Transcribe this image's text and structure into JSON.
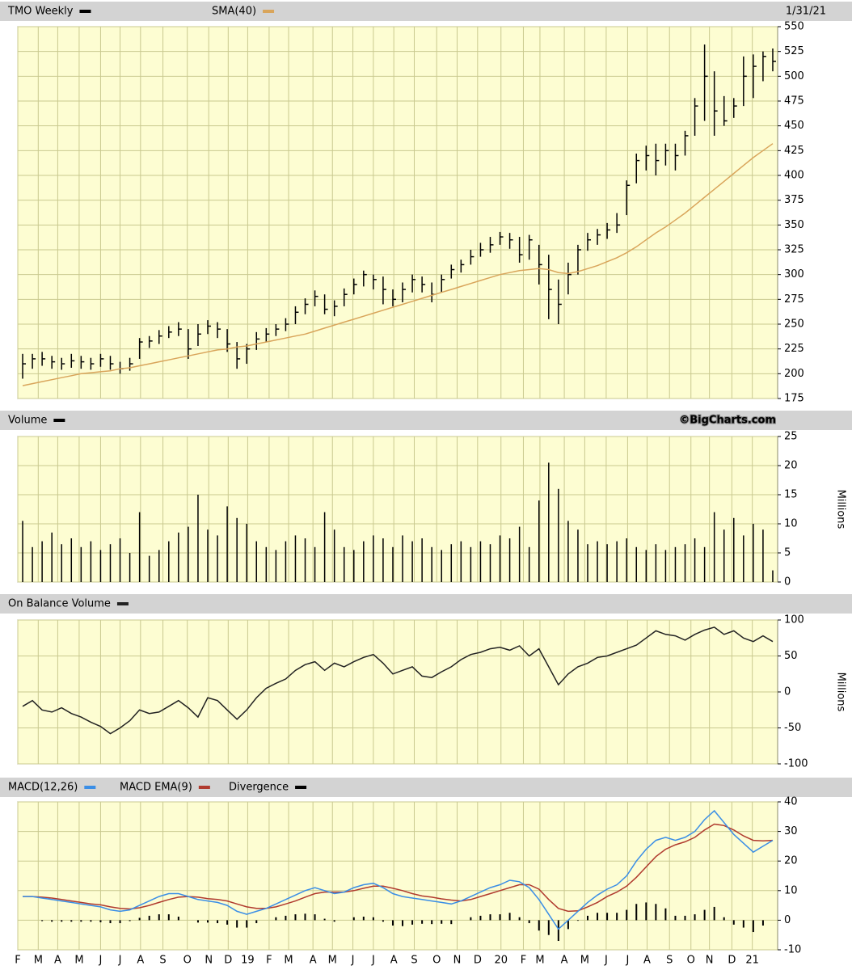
{
  "chart_data": [
    {
      "type": "ohlc",
      "date": "1/31/21",
      "ylim": [
        175,
        550
      ],
      "yticks": [
        175,
        200,
        225,
        250,
        275,
        300,
        325,
        350,
        375,
        400,
        425,
        450,
        475,
        500,
        525,
        550
      ],
      "grid": true,
      "series": [
        {
          "name": "TMO Weekly",
          "color": "#000000",
          "high": [
            220,
            220,
            222,
            218,
            216,
            220,
            218,
            216,
            220,
            218,
            212,
            216,
            236,
            238,
            244,
            248,
            252,
            245,
            250,
            254,
            252,
            245,
            232,
            230,
            242,
            246,
            250,
            256,
            268,
            276,
            284,
            280,
            274,
            286,
            296,
            304,
            300,
            298,
            285,
            292,
            300,
            298,
            292,
            300,
            310,
            315,
            325,
            332,
            338,
            343,
            342,
            338,
            340,
            330,
            320,
            295,
            312,
            330,
            342,
            346,
            352,
            362,
            395,
            422,
            430,
            432,
            432,
            432,
            445,
            478,
            532,
            505,
            480,
            478,
            520,
            522,
            525,
            528
          ],
          "low": [
            195,
            205,
            208,
            205,
            204,
            206,
            205,
            204,
            207,
            204,
            200,
            203,
            215,
            226,
            230,
            236,
            238,
            215,
            228,
            240,
            236,
            222,
            205,
            210,
            224,
            232,
            238,
            243,
            250,
            260,
            268,
            260,
            258,
            268,
            280,
            288,
            285,
            270,
            268,
            272,
            282,
            282,
            272,
            282,
            296,
            302,
            310,
            318,
            322,
            330,
            326,
            312,
            315,
            290,
            255,
            250,
            280,
            300,
            324,
            330,
            336,
            342,
            360,
            392,
            405,
            400,
            410,
            405,
            420,
            440,
            455,
            440,
            450,
            458,
            470,
            478,
            495,
            505
          ],
          "close": [
            210,
            215,
            215,
            212,
            210,
            213,
            212,
            210,
            215,
            210,
            205,
            210,
            232,
            233,
            238,
            242,
            245,
            225,
            240,
            248,
            245,
            230,
            215,
            225,
            235,
            240,
            245,
            250,
            262,
            270,
            278,
            265,
            268,
            280,
            290,
            300,
            295,
            285,
            275,
            285,
            295,
            290,
            280,
            295,
            305,
            310,
            318,
            325,
            330,
            338,
            335,
            320,
            335,
            310,
            285,
            270,
            300,
            325,
            335,
            340,
            345,
            350,
            390,
            415,
            420,
            415,
            425,
            420,
            440,
            470,
            500,
            465,
            455,
            470,
            500,
            510,
            520,
            515
          ]
        },
        {
          "name": "SMA(40)",
          "color": "#d9a55b",
          "values": [
            188,
            190,
            192,
            194,
            196,
            198,
            200,
            201,
            202,
            203,
            205,
            206,
            208,
            210,
            212,
            214,
            216,
            218,
            220,
            222,
            224,
            225,
            227,
            228,
            230,
            232,
            234,
            236,
            238,
            240,
            243,
            246,
            249,
            252,
            255,
            258,
            261,
            264,
            267,
            270,
            273,
            276,
            279,
            282,
            285,
            288,
            291,
            294,
            297,
            300,
            302,
            304,
            305,
            306,
            305,
            302,
            301,
            303,
            306,
            309,
            313,
            317,
            322,
            328,
            335,
            342,
            348,
            355,
            362,
            370,
            378,
            386,
            394,
            402,
            410,
            418,
            425,
            432
          ]
        }
      ]
    },
    {
      "type": "bar",
      "source": "©BigCharts.com",
      "ylabel": "Millions",
      "ylim": [
        0,
        25
      ],
      "yticks": [
        0,
        5,
        10,
        15,
        20,
        25
      ],
      "grid": true,
      "series": [
        {
          "name": "Volume",
          "color": "#000000",
          "values": [
            10.5,
            6,
            7,
            8.5,
            6.5,
            7.5,
            6,
            7,
            5.5,
            6.5,
            7.5,
            5,
            12,
            4.5,
            5.5,
            7,
            8.5,
            9.5,
            15,
            9,
            8,
            13,
            11,
            10,
            7,
            6,
            5.5,
            7,
            8,
            7.5,
            6,
            12,
            9,
            6,
            5.5,
            7,
            8,
            7.5,
            6,
            8,
            7,
            7.5,
            6,
            5.5,
            6.5,
            7,
            6,
            7,
            6.5,
            8,
            7.5,
            9.5,
            6,
            14,
            20.5,
            16,
            10.5,
            9,
            6.5,
            7,
            6.5,
            7,
            7.5,
            6,
            5.5,
            6.5,
            5.5,
            6,
            6.5,
            7.5,
            6,
            12,
            9,
            11,
            8,
            10,
            9,
            2
          ]
        }
      ]
    },
    {
      "type": "line",
      "ylabel": "Millions",
      "ylim": [
        -100,
        100
      ],
      "yticks": [
        -100,
        -50,
        0,
        50,
        100
      ],
      "grid": true,
      "series": [
        {
          "name": "On Balance Volume",
          "color": "#222222",
          "values": [
            -20,
            -12,
            -25,
            -28,
            -22,
            -30,
            -35,
            -42,
            -48,
            -58,
            -50,
            -40,
            -25,
            -30,
            -28,
            -20,
            -12,
            -22,
            -35,
            -8,
            -12,
            -25,
            -38,
            -25,
            -8,
            5,
            12,
            18,
            30,
            38,
            42,
            30,
            40,
            35,
            42,
            48,
            52,
            40,
            25,
            30,
            35,
            22,
            20,
            28,
            35,
            45,
            52,
            55,
            60,
            62,
            58,
            64,
            50,
            60,
            35,
            10,
            25,
            35,
            40,
            48,
            50,
            55,
            60,
            65,
            75,
            85,
            80,
            78,
            72,
            80,
            86,
            90,
            80,
            85,
            75,
            70,
            78,
            70
          ]
        }
      ]
    },
    {
      "type": "macd",
      "ylim": [
        -10,
        40
      ],
      "yticks": [
        -10,
        0,
        10,
        20,
        30,
        40
      ],
      "grid": true,
      "xlim": [
        0,
        78
      ],
      "xticks": [
        {
          "value": 0,
          "label": "F"
        },
        {
          "value": 2.1,
          "label": "M"
        },
        {
          "value": 4.1,
          "label": "A"
        },
        {
          "value": 6.3,
          "label": "M"
        },
        {
          "value": 8.5,
          "label": "J"
        },
        {
          "value": 10.5,
          "label": "J"
        },
        {
          "value": 12.6,
          "label": "A"
        },
        {
          "value": 14.9,
          "label": "S"
        },
        {
          "value": 17.4,
          "label": "O"
        },
        {
          "value": 19.6,
          "label": "N"
        },
        {
          "value": 21.6,
          "label": "D"
        },
        {
          "value": 23.6,
          "label": "19"
        },
        {
          "value": 25.8,
          "label": "F"
        },
        {
          "value": 27.8,
          "label": "M"
        },
        {
          "value": 30.3,
          "label": "A"
        },
        {
          "value": 32.3,
          "label": "M"
        },
        {
          "value": 34.4,
          "label": "J"
        },
        {
          "value": 36.5,
          "label": "J"
        },
        {
          "value": 38.6,
          "label": "A"
        },
        {
          "value": 40.7,
          "label": "S"
        },
        {
          "value": 43,
          "label": "O"
        },
        {
          "value": 45.1,
          "label": "N"
        },
        {
          "value": 47.2,
          "label": "D"
        },
        {
          "value": 49.6,
          "label": "20"
        },
        {
          "value": 51.9,
          "label": "F"
        },
        {
          "value": 53.6,
          "label": "M"
        },
        {
          "value": 56.1,
          "label": "A"
        },
        {
          "value": 58.2,
          "label": "M"
        },
        {
          "value": 60.4,
          "label": "J"
        },
        {
          "value": 62.6,
          "label": "J"
        },
        {
          "value": 64.6,
          "label": "A"
        },
        {
          "value": 66.9,
          "label": "S"
        },
        {
          "value": 69.1,
          "label": "O"
        },
        {
          "value": 71,
          "label": "N"
        },
        {
          "value": 73.3,
          "label": "D"
        },
        {
          "value": 75.4,
          "label": "21"
        }
      ],
      "series": [
        {
          "name": "MACD(12,26)",
          "color": "#3a8ee6",
          "values": [
            8,
            8,
            7.5,
            7,
            6.5,
            6,
            5.5,
            5,
            4.5,
            3.5,
            3,
            3.5,
            5,
            6.5,
            8,
            9,
            9,
            8,
            7,
            6.5,
            6,
            5,
            3,
            2,
            3,
            4,
            5.5,
            7,
            8.5,
            10,
            11,
            10,
            9,
            9.5,
            11,
            12,
            12.5,
            11,
            9,
            8,
            7.5,
            7,
            6.5,
            6,
            5.5,
            6.5,
            8,
            9.5,
            11,
            12,
            13.5,
            13,
            11,
            7,
            2,
            -3,
            0,
            3,
            6,
            8.5,
            10.5,
            12,
            15,
            20,
            24,
            27,
            28,
            27,
            28,
            30,
            34,
            37,
            33,
            29,
            26,
            23,
            25,
            27
          ]
        },
        {
          "name": "MACD EMA(9)",
          "color": "#b03a2e",
          "values": [
            8,
            8,
            7.8,
            7.5,
            7,
            6.5,
            6,
            5.5,
            5.2,
            4.5,
            4,
            3.8,
            4.2,
            5,
            6,
            7,
            7.8,
            8,
            7.8,
            7.3,
            7,
            6.5,
            5.5,
            4.5,
            4,
            4,
            4.5,
            5.5,
            6.5,
            7.8,
            9,
            9.5,
            9.5,
            9.5,
            10,
            10.8,
            11.5,
            11.5,
            10.8,
            10,
            9,
            8.2,
            7.8,
            7.2,
            6.8,
            6.5,
            7,
            8,
            9,
            10,
            11,
            12,
            12,
            10.5,
            7,
            4,
            3,
            3.2,
            4.5,
            6,
            8,
            9.5,
            11.5,
            14.5,
            18,
            21.5,
            24,
            25.5,
            26.5,
            28,
            30.5,
            32.5,
            32,
            30.5,
            28.5,
            27,
            26.8,
            27
          ]
        },
        {
          "name": "Divergence",
          "color": "#000000",
          "values": [
            0,
            0,
            -0.3,
            -0.5,
            -0.5,
            -0.5,
            -0.5,
            -0.5,
            -0.7,
            -1,
            -1,
            -0.3,
            0.8,
            1.5,
            2,
            2,
            1.2,
            0,
            -0.8,
            -0.8,
            -1,
            -1.5,
            -2.5,
            -2.5,
            -1,
            0,
            1,
            1.5,
            2,
            2.2,
            2,
            0.5,
            -0.5,
            0,
            1,
            1.2,
            1,
            -0.5,
            -1.8,
            -2,
            -1.5,
            -1.2,
            -1.3,
            -1.2,
            -1.3,
            0,
            1,
            1.5,
            2,
            2,
            2.5,
            1,
            -1,
            -3.5,
            -5,
            -7,
            -3,
            -0.2,
            1.5,
            2.5,
            2.5,
            2.5,
            3.5,
            5.5,
            6,
            5.5,
            4,
            1.5,
            1.5,
            2,
            3.5,
            4.5,
            1,
            -1.5,
            -2.5,
            -4,
            -1.8,
            0
          ]
        }
      ]
    }
  ]
}
